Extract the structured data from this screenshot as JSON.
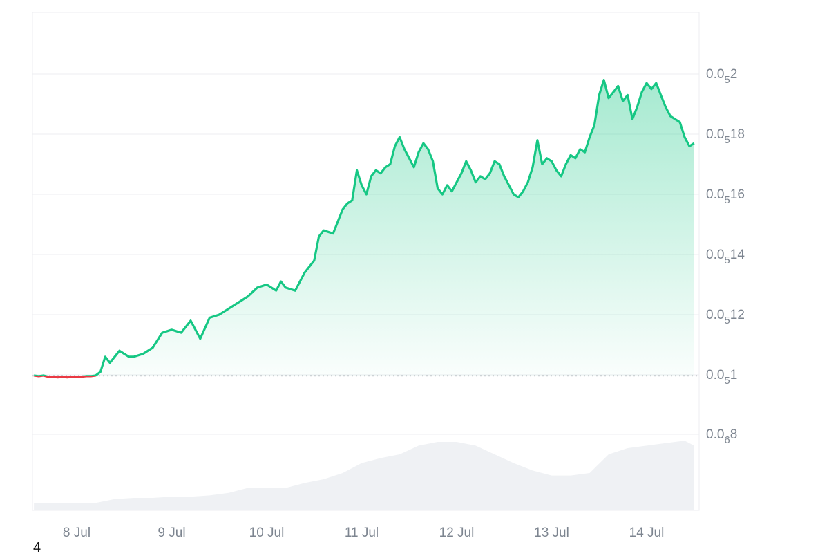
{
  "chart_data": {
    "type": "area",
    "title": "",
    "xlabel": "",
    "ylabel": "",
    "x_tick_labels": [
      "8 Jul",
      "9 Jul",
      "10 Jul",
      "11 Jul",
      "12 Jul",
      "13 Jul",
      "14 Jul"
    ],
    "y_ticks": [
      {
        "value": 8e-07,
        "label": {
          "lead": "0.0",
          "sub": "6",
          "tail": "8"
        }
      },
      {
        "value": 1e-05,
        "label": {
          "lead": "0.0",
          "sub": "5",
          "tail": "1"
        }
      },
      {
        "value": 1.2e-05,
        "label": {
          "lead": "0.0",
          "sub": "5",
          "tail": "12"
        }
      },
      {
        "value": 1.4e-05,
        "label": {
          "lead": "0.0",
          "sub": "5",
          "tail": "14"
        }
      },
      {
        "value": 1.6e-05,
        "label": {
          "lead": "0.0",
          "sub": "5",
          "tail": "16"
        }
      },
      {
        "value": 1.8e-05,
        "label": {
          "lead": "0.0",
          "sub": "5",
          "tail": "18"
        }
      },
      {
        "value": 2e-05,
        "label": {
          "lead": "0.0",
          "sub": "5",
          "tail": "2"
        }
      }
    ],
    "baseline_value": 9.85e-06,
    "price_series": {
      "x": [
        7.55,
        7.6,
        7.65,
        7.7,
        7.75,
        7.8,
        7.85,
        7.9,
        7.95,
        8.0,
        8.05,
        8.1,
        8.15,
        8.2,
        8.25,
        8.3,
        8.35,
        8.4,
        8.45,
        8.5,
        8.55,
        8.6,
        8.7,
        8.8,
        8.9,
        9.0,
        9.1,
        9.2,
        9.3,
        9.4,
        9.5,
        9.55,
        9.6,
        9.7,
        9.8,
        9.9,
        10.0,
        10.1,
        10.15,
        10.2,
        10.3,
        10.4,
        10.5,
        10.55,
        10.6,
        10.7,
        10.8,
        10.85,
        10.9,
        10.95,
        11.0,
        11.05,
        11.1,
        11.15,
        11.2,
        11.25,
        11.3,
        11.35,
        11.4,
        11.45,
        11.5,
        11.55,
        11.6,
        11.65,
        11.7,
        11.75,
        11.8,
        11.85,
        11.9,
        11.95,
        12.0,
        12.05,
        12.1,
        12.15,
        12.2,
        12.25,
        12.3,
        12.35,
        12.4,
        12.45,
        12.5,
        12.55,
        12.6,
        12.65,
        12.7,
        12.75,
        12.8,
        12.85,
        12.9,
        12.95,
        13.0,
        13.05,
        13.1,
        13.15,
        13.2,
        13.25,
        13.3,
        13.35,
        13.4,
        13.45,
        13.5,
        13.55,
        13.6,
        13.65,
        13.7,
        13.75,
        13.8,
        13.85,
        13.9,
        13.95,
        14.0,
        14.05,
        14.1,
        14.15,
        14.2,
        14.25,
        14.3,
        14.35,
        14.4,
        14.45,
        14.5
      ],
      "y": [
        9.9e-06,
        9.8e-06,
        9.9e-06,
        9.7e-06,
        9.7e-06,
        9.6e-06,
        9.7e-06,
        9.6e-06,
        9.7e-06,
        9.7e-06,
        9.7e-06,
        9.8e-06,
        9.8e-06,
        9.9e-06,
        1.01e-05,
        1.06e-05,
        1.04e-05,
        1.06e-05,
        1.08e-05,
        1.07e-05,
        1.06e-05,
        1.06e-05,
        1.07e-05,
        1.09e-05,
        1.14e-05,
        1.15e-05,
        1.14e-05,
        1.18e-05,
        1.12e-05,
        1.19e-05,
        1.2e-05,
        1.21e-05,
        1.22e-05,
        1.24e-05,
        1.26e-05,
        1.29e-05,
        1.3e-05,
        1.28e-05,
        1.31e-05,
        1.29e-05,
        1.28e-05,
        1.34e-05,
        1.38e-05,
        1.46e-05,
        1.48e-05,
        1.47e-05,
        1.55e-05,
        1.57e-05,
        1.58e-05,
        1.68e-05,
        1.63e-05,
        1.6e-05,
        1.66e-05,
        1.68e-05,
        1.67e-05,
        1.69e-05,
        1.7e-05,
        1.76e-05,
        1.79e-05,
        1.75e-05,
        1.72e-05,
        1.69e-05,
        1.74e-05,
        1.77e-05,
        1.75e-05,
        1.71e-05,
        1.62e-05,
        1.6e-05,
        1.63e-05,
        1.61e-05,
        1.64e-05,
        1.67e-05,
        1.71e-05,
        1.68e-05,
        1.64e-05,
        1.66e-05,
        1.65e-05,
        1.67e-05,
        1.71e-05,
        1.7e-05,
        1.66e-05,
        1.63e-05,
        1.6e-05,
        1.59e-05,
        1.61e-05,
        1.64e-05,
        1.69e-05,
        1.78e-05,
        1.7e-05,
        1.72e-05,
        1.71e-05,
        1.68e-05,
        1.66e-05,
        1.7e-05,
        1.73e-05,
        1.72e-05,
        1.75e-05,
        1.74e-05,
        1.79e-05,
        1.83e-05,
        1.93e-05,
        1.98e-05,
        1.92e-05,
        1.94e-05,
        1.96e-05,
        1.91e-05,
        1.93e-05,
        1.85e-05,
        1.89e-05,
        1.94e-05,
        1.97e-05,
        1.95e-05,
        1.97e-05,
        1.93e-05,
        1.89e-05,
        1.86e-05,
        1.85e-05,
        1.84e-05,
        1.79e-05,
        1.76e-05,
        1.77e-05
      ]
    },
    "volume_series": {
      "x": [
        7.55,
        7.8,
        8.0,
        8.2,
        8.4,
        8.6,
        8.8,
        9.0,
        9.2,
        9.4,
        9.6,
        9.8,
        10.0,
        10.2,
        10.4,
        10.6,
        10.8,
        11.0,
        11.2,
        11.4,
        11.6,
        11.8,
        12.0,
        12.2,
        12.4,
        12.6,
        12.8,
        13.0,
        13.2,
        13.4,
        13.6,
        13.8,
        14.0,
        14.2,
        14.4,
        14.5
      ],
      "y": [
        6,
        6,
        6,
        6,
        9,
        10,
        10,
        11,
        11,
        12,
        14,
        18,
        18,
        18,
        22,
        25,
        30,
        38,
        42,
        45,
        52,
        55,
        55,
        52,
        45,
        38,
        32,
        28,
        28,
        30,
        45,
        50,
        52,
        54,
        56,
        52
      ]
    },
    "colors": {
      "up_line": "#16c784",
      "down_line": "#ea3943",
      "volume": "#eff1f4",
      "grid": "#eceef1",
      "axis_text": "#7d8590"
    }
  },
  "footnote": "4"
}
